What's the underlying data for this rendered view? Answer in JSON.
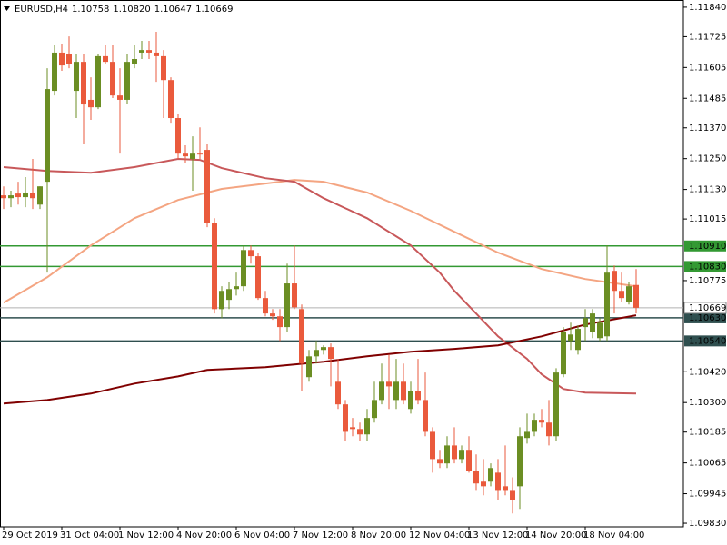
{
  "chart_data": {
    "type": "candlestick",
    "title": "EURUSD,H4",
    "header_prices": [
      "1.10758",
      "1.10820",
      "1.10647",
      "1.10669"
    ],
    "bull_color": "#6b8e23",
    "bear_color": "#ea5a3c",
    "open": [
      1.11107,
      1.11096,
      1.11114,
      1.111,
      1.11118,
      1.11071,
      1.1116,
      1.11514,
      1.11663,
      1.11656,
      1.11514,
      1.11627,
      1.11479,
      1.1145,
      1.11649,
      1.11627,
      1.11496,
      1.11479,
      1.1162,
      1.11663,
      1.11673,
      1.11663,
      1.11649,
      1.11556,
      1.11408,
      1.11273,
      1.11249,
      1.11273,
      1.11284,
      1.11001,
      1.10664,
      1.107,
      1.10742,
      1.10753,
      1.10894,
      1.1087,
      1.10707,
      1.10647,
      1.10636,
      1.10594,
      1.10764,
      1.10664,
      1.10399,
      1.1048,
      1.10505,
      1.10516,
      1.10381,
      1.10293,
      1.10204,
      1.10197,
      1.10176,
      1.1024,
      1.1031,
      1.10381,
      1.1031,
      1.10381,
      1.10275,
      1.10346,
      1.1031,
      1.10186,
      1.1008,
      1.10063,
      1.10133,
      1.1008,
      1.10116,
      1.10034,
      1.09992,
      1.09992,
      1.10027,
      1.09974,
      1.09956,
      1.09974,
      1.10162,
      1.10186,
      1.10233,
      1.10222,
      1.10169,
      1.1041,
      1.1054,
      1.10505,
      1.10594,
      1.10576,
      1.10551,
      1.10558,
      1.10813,
      1.10735,
      1.10693,
      1.10758
    ],
    "high": [
      1.11142,
      1.11125,
      1.1116,
      1.11178,
      1.11249,
      1.11142,
      1.11602,
      1.11691,
      1.11698,
      1.11726,
      1.11656,
      1.11656,
      1.11567,
      1.11656,
      1.11691,
      1.11691,
      1.11602,
      1.11656,
      1.11691,
      1.11709,
      1.11709,
      1.11744,
      1.11673,
      1.11567,
      1.11425,
      1.11302,
      1.11337,
      1.11372,
      1.11309,
      1.11018,
      1.10753,
      1.10771,
      1.10806,
      1.10912,
      1.10912,
      1.10884,
      1.10735,
      1.10664,
      1.10664,
      1.10841,
      1.10912,
      1.10682,
      1.10505,
      1.1054,
      1.10523,
      1.1053,
      1.1047,
      1.1031,
      1.1024,
      1.10222,
      1.10275,
      1.10381,
      1.10452,
      1.10487,
      1.1047,
      1.10452,
      1.10381,
      1.1047,
      1.10417,
      1.10204,
      1.10116,
      1.10169,
      1.10204,
      1.10133,
      1.10169,
      1.10098,
      1.1008,
      1.10063,
      1.1008,
      1.10133,
      1.10009,
      1.10204,
      1.10257,
      1.10257,
      1.10275,
      1.1031,
      1.10434,
      1.10594,
      1.10611,
      1.10601,
      1.10664,
      1.10664,
      1.10629,
      1.10912,
      1.10834,
      1.10806,
      1.10771,
      1.1082
    ],
    "low": [
      1.11054,
      1.11061,
      1.11071,
      1.11061,
      1.11054,
      1.11054,
      1.10806,
      1.11496,
      1.11592,
      1.11602,
      1.11408,
      1.11309,
      1.11401,
      1.11443,
      1.1162,
      1.11486,
      1.11273,
      1.11461,
      1.11602,
      1.11638,
      1.11638,
      1.11549,
      1.11408,
      1.1139,
      1.11249,
      1.11231,
      1.11125,
      1.11249,
      1.10983,
      1.10647,
      1.10629,
      1.10664,
      1.10717,
      1.10735,
      1.10841,
      1.107,
      1.10636,
      1.10622,
      1.1054,
      1.10576,
      1.10664,
      1.10346,
      1.10381,
      1.10452,
      1.10487,
      1.10363,
      1.10275,
      1.10151,
      1.10169,
      1.10151,
      1.10151,
      1.10222,
      1.10293,
      1.10275,
      1.10275,
      1.10293,
      1.10257,
      1.10293,
      1.10169,
      1.10027,
      1.10045,
      1.10045,
      1.10063,
      1.10063,
      1.10027,
      1.09956,
      1.09939,
      1.09974,
      1.09921,
      1.09939,
      1.09868,
      1.09886,
      1.1014,
      1.10169,
      1.10204,
      1.10133,
      1.10151,
      1.10399,
      1.10505,
      1.10487,
      1.1054,
      1.10551,
      1.1054,
      1.1054,
      1.10647,
      1.10693,
      1.10682,
      1.10647
    ],
    "close": [
      1.11096,
      1.11107,
      1.111,
      1.11118,
      1.11096,
      1.11142,
      1.11521,
      1.11663,
      1.11613,
      1.1162,
      1.11627,
      1.11461,
      1.1145,
      1.11649,
      1.11627,
      1.11496,
      1.11479,
      1.11627,
      1.11638,
      1.11673,
      1.11663,
      1.11649,
      1.11556,
      1.11408,
      1.11273,
      1.11259,
      1.11273,
      1.11266,
      1.11001,
      1.10664,
      1.10735,
      1.10742,
      1.10753,
      1.10894,
      1.1087,
      1.10707,
      1.10647,
      1.10636,
      1.10594,
      1.10764,
      1.10671,
      1.10452,
      1.1048,
      1.10505,
      1.10516,
      1.1047,
      1.10293,
      1.10186,
      1.10197,
      1.10176,
      1.1024,
      1.1031,
      1.10381,
      1.10363,
      1.10381,
      1.1031,
      1.10346,
      1.1031,
      1.10186,
      1.1008,
      1.10063,
      1.10133,
      1.1008,
      1.10116,
      1.10034,
      1.09985,
      1.09974,
      1.10045,
      1.09956,
      1.09956,
      1.09921,
      1.10169,
      1.10186,
      1.10233,
      1.10222,
      1.10169,
      1.10417,
      1.10576,
      1.10565,
      1.10587,
      1.10629,
      1.10647,
      1.10611,
      1.10806,
      1.10735,
      1.10707,
      1.10753,
      1.10669
    ],
    "lines": [
      {
        "color": "#f4a582",
        "x": [
          0,
          6,
          12,
          18,
          24,
          30,
          36,
          40,
          44,
          50,
          56,
          62,
          68,
          74,
          80,
          87
        ],
        "values": [
          1.10689,
          1.10788,
          1.10912,
          1.11018,
          1.11089,
          1.11132,
          1.11153,
          1.11167,
          1.1116,
          1.11118,
          1.11047,
          1.10965,
          1.10884,
          1.1082,
          1.10781,
          1.10753
        ]
      },
      {
        "color": "#c8585a",
        "x": [
          0,
          6,
          12,
          18,
          24,
          27,
          30,
          36,
          40,
          44,
          50,
          56,
          60,
          62,
          68,
          72,
          74,
          77,
          80,
          87
        ],
        "values": [
          1.11217,
          1.11202,
          1.11195,
          1.11217,
          1.11249,
          1.11245,
          1.11213,
          1.11174,
          1.1116,
          1.11096,
          1.11018,
          1.10912,
          1.10806,
          1.10735,
          1.10558,
          1.1047,
          1.1041,
          1.10353,
          1.10339,
          1.10335
        ]
      },
      {
        "color": "#800000",
        "x": [
          0,
          6,
          12,
          18,
          24,
          28,
          36,
          44,
          50,
          56,
          62,
          68,
          74,
          80,
          87
        ],
        "values": [
          1.10296,
          1.1031,
          1.10335,
          1.10374,
          1.10402,
          1.10427,
          1.10438,
          1.10459,
          1.1048,
          1.10498,
          1.10509,
          1.10523,
          1.10558,
          1.10604,
          1.1064
        ]
      }
    ],
    "levels": [
      {
        "value": 1.1091,
        "label": "1.10910",
        "color": "#339933"
      },
      {
        "value": 1.1083,
        "label": "1.10830",
        "color": "#339933"
      },
      {
        "value": 1.1063,
        "label": "1.10630",
        "color": "#2f4f4f"
      },
      {
        "value": 1.1054,
        "label": "1.10540",
        "color": "#2f4f4f"
      }
    ],
    "current_price": {
      "value": 1.10669,
      "label": "1.10669"
    },
    "xlim": [
      -0.5,
      93.5
    ],
    "xticks": [
      {
        "value": 0,
        "label": "29 Oct 2019"
      },
      {
        "value": 8,
        "label": "31 Oct 04:00"
      },
      {
        "value": 16,
        "label": "1 Nov 12:00"
      },
      {
        "value": 24,
        "label": "4 Nov 20:00"
      },
      {
        "value": 32,
        "label": "6 Nov 04:00"
      },
      {
        "value": 40,
        "label": "7 Nov 12:00"
      },
      {
        "value": 48,
        "label": "8 Nov 20:00"
      },
      {
        "value": 56,
        "label": "12 Nov 04:00"
      },
      {
        "value": 64,
        "label": "13 Nov 12:00"
      },
      {
        "value": 72,
        "label": "14 Nov 20:00"
      },
      {
        "value": 80,
        "label": "18 Nov 04:00"
      }
    ],
    "ylim": [
      1.09816,
      1.11868
    ],
    "yticks": [
      {
        "value": 1.1184,
        "label": "1.11840"
      },
      {
        "value": 1.11725,
        "label": "1.11725"
      },
      {
        "value": 1.11605,
        "label": "1.11605"
      },
      {
        "value": 1.11485,
        "label": "1.11485"
      },
      {
        "value": 1.1137,
        "label": "1.11370"
      },
      {
        "value": 1.1125,
        "label": "1.11250"
      },
      {
        "value": 1.1113,
        "label": "1.11130"
      },
      {
        "value": 1.11015,
        "label": "1.11015"
      },
      {
        "value": 1.10775,
        "label": "1.10775"
      },
      {
        "value": 1.1042,
        "label": "1.10420"
      },
      {
        "value": 1.103,
        "label": "1.10300"
      },
      {
        "value": 1.10185,
        "label": "1.10185"
      },
      {
        "value": 1.10065,
        "label": "1.10065"
      },
      {
        "value": 1.09945,
        "label": "1.09945"
      },
      {
        "value": 1.0983,
        "label": "1.09830"
      }
    ]
  }
}
